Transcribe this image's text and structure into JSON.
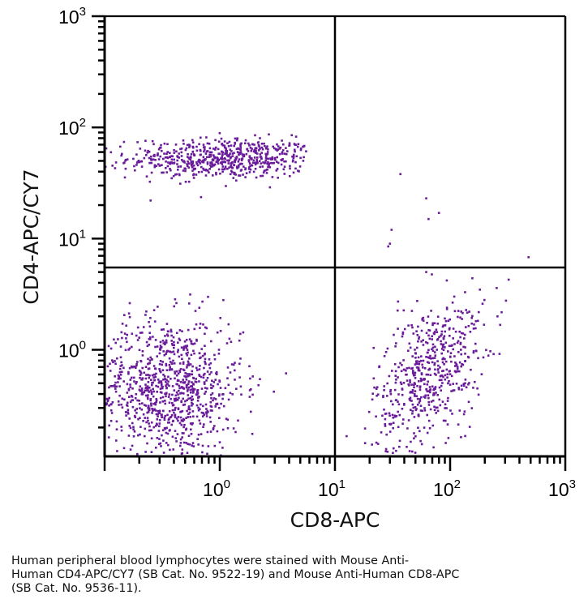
{
  "chart_data": {
    "type": "scatter",
    "title": "",
    "xlabel": "CD8-APC",
    "ylabel": "CD4-APC/CY7",
    "xscale": "log",
    "yscale": "log",
    "xlim": [
      0.1,
      1000
    ],
    "ylim": [
      0.11,
      1000
    ],
    "x_ticks": [
      {
        "value": 1,
        "base": "10",
        "exp": "0"
      },
      {
        "value": 10,
        "base": "10",
        "exp": "1"
      },
      {
        "value": 100,
        "base": "10",
        "exp": "2"
      },
      {
        "value": 1000,
        "base": "10",
        "exp": "3"
      }
    ],
    "y_ticks": [
      {
        "value": 1,
        "base": "10",
        "exp": "0"
      },
      {
        "value": 10,
        "base": "10",
        "exp": "1"
      },
      {
        "value": 100,
        "base": "10",
        "exp": "2"
      },
      {
        "value": 1000,
        "base": "10",
        "exp": "3"
      }
    ],
    "quadrant_gate": {
      "x": 10,
      "y": 5.5
    },
    "grid": false,
    "legend": "none",
    "point_color": "#6a1b9a",
    "populations": [
      {
        "name": "CD4+ CD8- (upper-left)",
        "n": 620,
        "x_center_log": 0.05,
        "x_sd_log": 0.42,
        "x_range_log": [
          -1.0,
          0.75
        ],
        "y_center_log": 1.72,
        "y_sd_log": 0.09
      },
      {
        "name": "CD4- CD8- (lower-left)",
        "n": 900,
        "x_center_log": -0.45,
        "x_sd_log": 0.32,
        "x_range_log": [
          -1.0,
          0.9
        ],
        "y_center_log": -0.35,
        "y_sd_log": 0.32
      },
      {
        "name": "CD4- CD8+ (lower-right)",
        "n": 560,
        "x_center_log": 1.82,
        "x_sd_log": 0.24,
        "x_range_log": [
          1.0,
          2.6
        ],
        "y_center_log": -0.2,
        "y_sd_log": 0.3
      },
      {
        "name": "CD4+ CD8+ (upper-right)",
        "n": 9,
        "points": [
          [
            37,
            38
          ],
          [
            62,
            23
          ],
          [
            65,
            15
          ],
          [
            80,
            17
          ],
          [
            30,
            9
          ],
          [
            31,
            12
          ],
          [
            29,
            8.5
          ],
          [
            480,
            6.8
          ],
          [
            62,
            5.0
          ]
        ]
      }
    ]
  },
  "caption": {
    "lines": [
      "Human peripheral blood lymphocytes were stained with Mouse Anti-",
      "Human CD4-APC/CY7 (SB Cat. No. 9522-19) and Mouse Anti-Human CD8-APC",
      "(SB Cat. No. 9536-11)."
    ]
  }
}
